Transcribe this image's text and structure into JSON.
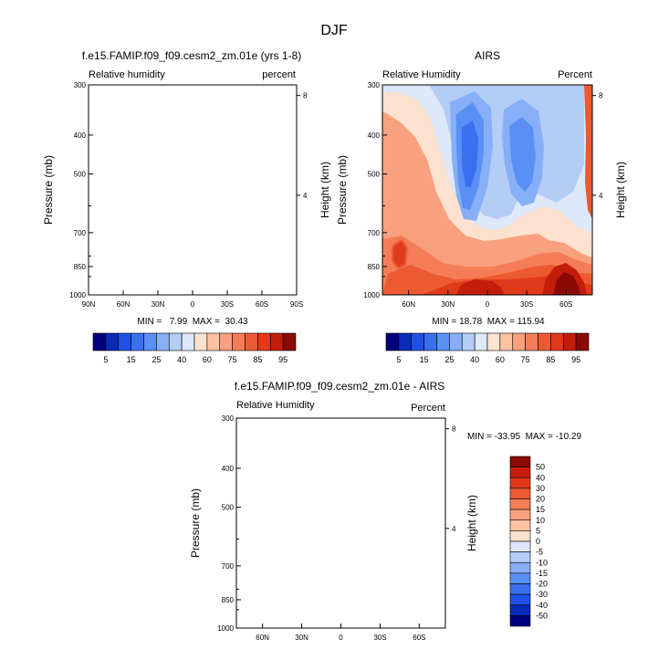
{
  "figure": {
    "title": "DJF"
  },
  "palette": {
    "rh": [
      "#00007f",
      "#0a2ab8",
      "#2050e8",
      "#3a6ff0",
      "#5a8ff5",
      "#87aff7",
      "#b4cdf7",
      "#dde8fb",
      "#fde2cf",
      "#fcc2a2",
      "#f9a07e",
      "#f47d57",
      "#ec5a32",
      "#e03a1b",
      "#c41d0b",
      "#8b0a04"
    ],
    "diff": [
      "#00007f",
      "#0a2ab8",
      "#2050e8",
      "#3a6ff0",
      "#5a8ff5",
      "#87aff7",
      "#b4cdf7",
      "#dde8fb",
      "#fde2cf",
      "#fcc2a2",
      "#f9a07e",
      "#f47d57",
      "#ec5a32",
      "#e03a1b",
      "#c41d0b",
      "#8b0a04"
    ]
  },
  "panels": [
    {
      "title": "f.e15.FAMIP.f09_f09.cesm2_zm.01e (yrs 1-8)",
      "left_label": "Relative humidity",
      "right_label": "percent",
      "y_label": "Pressure (mb)",
      "y2_label": "Height (km)",
      "x_ticks": [
        "90N",
        "60N",
        "30N",
        "0",
        "30S",
        "60S",
        "90S"
      ],
      "y_ticks": [
        "300",
        "400",
        "500",
        "700",
        "850",
        "1000"
      ],
      "y2_ticks": [
        "8",
        "4"
      ],
      "min_text": "MIN =   7.99  MAX =  30.43"
    },
    {
      "title": "AIRS",
      "left_label": "Relative Humidity",
      "right_label": "Percent",
      "y_label": "Pressure (mb)",
      "y2_label": "Height (km)",
      "x_ticks": [
        "60N",
        "30N",
        "0",
        "30S",
        "60S"
      ],
      "y_ticks": [
        "300",
        "400",
        "500",
        "700",
        "850",
        "1000"
      ],
      "y2_ticks": [
        "8",
        "4"
      ],
      "min_text": "MIN = 18.78  MAX = 115.94"
    },
    {
      "title": "f.e15.FAMIP.f09_f09.cesm2_zm.01e - AIRS",
      "left_label": "Relative Humidity",
      "right_label": "Percent",
      "y_label": "Pressure (mb)",
      "y2_label": "Height (km)",
      "x_ticks": [
        "60N",
        "30N",
        "0",
        "30S",
        "60S"
      ],
      "y_ticks": [
        "300",
        "400",
        "500",
        "700",
        "850",
        "1000"
      ],
      "y2_ticks": [
        "8",
        "4"
      ],
      "min_text": "MIN = -33.95  MAX = -10.29"
    }
  ],
  "colorbars": {
    "rh_labels": [
      "5",
      "15",
      "25",
      "40",
      "60",
      "75",
      "85",
      "95"
    ],
    "diff_labels": [
      "50",
      "40",
      "30",
      "20",
      "15",
      "10",
      "5",
      "0",
      "-5",
      "-10",
      "-15",
      "-20",
      "-30",
      "-40",
      "-50"
    ]
  },
  "chart_data": [
    {
      "type": "heatmap",
      "title": "f.e15.FAMIP.f09_f09.cesm2_zm.01e (yrs 1-8)",
      "xlabel": "",
      "ylabel": "Pressure (mb)",
      "y2label": "Height (km)",
      "x_ticks": [
        "90N",
        "60N",
        "30N",
        "0",
        "30S",
        "60S",
        "90S"
      ],
      "y_ticks": [
        300,
        400,
        500,
        700,
        850,
        1000
      ],
      "y_scale": "log",
      "y_reversed": true,
      "min": 7.99,
      "max": 30.43,
      "contour_levels": [
        5,
        15,
        25,
        40,
        60,
        75,
        85,
        95
      ]
    },
    {
      "type": "heatmap",
      "title": "AIRS",
      "xlabel": "",
      "ylabel": "Pressure (mb)",
      "y2label": "Height (km)",
      "x_ticks": [
        "60N",
        "30N",
        "0",
        "30S",
        "60S"
      ],
      "y_ticks": [
        300,
        400,
        500,
        700,
        850,
        1000
      ],
      "y_scale": "log",
      "y_reversed": true,
      "min": 18.78,
      "max": 115.94,
      "contour_levels": [
        5,
        15,
        25,
        40,
        60,
        75,
        85,
        95
      ]
    },
    {
      "type": "heatmap",
      "title": "f.e15.FAMIP.f09_f09.cesm2_zm.01e - AIRS",
      "xlabel": "",
      "ylabel": "Pressure (mb)",
      "y2label": "Height (km)",
      "x_ticks": [
        "60N",
        "30N",
        "0",
        "30S",
        "60S"
      ],
      "y_ticks": [
        300,
        400,
        500,
        700,
        850,
        1000
      ],
      "y_scale": "log",
      "y_reversed": true,
      "min": -33.95,
      "max": -10.29,
      "contour_levels": [
        -50,
        -40,
        -30,
        -20,
        -15,
        -10,
        -5,
        0,
        5,
        10,
        15,
        20,
        30,
        40,
        50
      ]
    }
  ]
}
